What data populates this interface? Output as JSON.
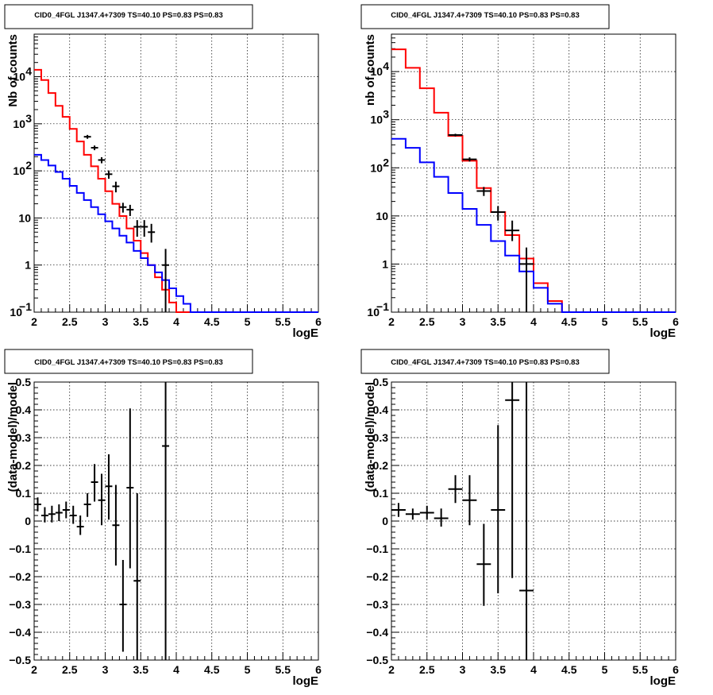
{
  "chart_data": [
    {
      "type": "line",
      "title": "CID0_4FGL J1347.4+7309 TS=40.10 PS=0.83 PS=0.83",
      "xlabel": "logE",
      "ylabel": "Nb of counts",
      "xlim": [
        2,
        6
      ],
      "ylim": [
        0.1,
        80000
      ],
      "yscale": "log",
      "grid": true,
      "x_ticks": [
        "2",
        "2.5",
        "3",
        "3.5",
        "4",
        "4.5",
        "5",
        "5.5",
        "6"
      ],
      "y_ticks": [
        {
          "v": 0.1,
          "label": "10",
          "sup": "−1"
        },
        {
          "v": 1,
          "label": "1"
        },
        {
          "v": 10,
          "label": "10"
        },
        {
          "v": 100,
          "label": "10",
          "sup": "2"
        },
        {
          "v": 1000,
          "label": "10",
          "sup": "3"
        },
        {
          "v": 10000,
          "label": "10",
          "sup": "4"
        }
      ],
      "bin_edges": [
        2.0,
        2.1,
        2.2,
        2.3,
        2.4,
        2.5,
        2.6,
        2.7,
        2.8,
        2.9,
        3.0,
        3.1,
        3.2,
        3.3,
        3.4,
        3.5,
        3.6,
        3.7,
        3.8,
        3.9,
        4.0,
        4.1,
        4.2,
        4.3,
        4.4,
        4.5,
        4.6,
        4.7,
        4.8,
        4.9,
        5.0,
        5.1,
        5.2,
        5.3,
        5.4,
        5.5,
        5.6,
        5.7,
        5.8,
        5.9,
        6.0
      ],
      "series": [
        {
          "color": "#ff0000",
          "values": [
            14000,
            8500,
            4500,
            2400,
            1400,
            780,
            420,
            220,
            125,
            68,
            37,
            20,
            11,
            6,
            3.3,
            1.8,
            1.0,
            0.55,
            0.3,
            0.16,
            0.1,
            0.1,
            0.1,
            0.1,
            0.1,
            0.1,
            0.1,
            0.1,
            0.1,
            0.1,
            0.1,
            0.1,
            0.1,
            0.1,
            0.1,
            0.1,
            0.1,
            0.1,
            0.1,
            0.1
          ]
        },
        {
          "color": "#0000ff",
          "values": [
            220,
            170,
            130,
            95,
            68,
            48,
            34,
            24,
            17,
            12,
            8.5,
            6,
            4.2,
            3,
            2,
            1.4,
            1.0,
            0.7,
            0.48,
            0.32,
            0.22,
            0.15,
            0.1,
            0.1,
            0.1,
            0.1,
            0.1,
            0.1,
            0.1,
            0.1,
            0.1,
            0.1,
            0.1,
            0.1,
            0.1,
            0.1,
            0.1,
            0.1,
            0.1,
            0.1
          ]
        }
      ],
      "points": [
        {
          "x": 2.75,
          "y": 530,
          "ylo": 480,
          "yhi": 580
        },
        {
          "x": 2.85,
          "y": 310,
          "ylo": 275,
          "yhi": 345
        },
        {
          "x": 2.95,
          "y": 170,
          "ylo": 145,
          "yhi": 195
        },
        {
          "x": 3.05,
          "y": 85,
          "ylo": 68,
          "yhi": 102
        },
        {
          "x": 3.15,
          "y": 47,
          "ylo": 35,
          "yhi": 59
        },
        {
          "x": 3.25,
          "y": 17,
          "ylo": 13,
          "yhi": 21
        },
        {
          "x": 3.35,
          "y": 15,
          "ylo": 11,
          "yhi": 19
        },
        {
          "x": 3.45,
          "y": 6.5,
          "ylo": 4,
          "yhi": 9
        },
        {
          "x": 3.55,
          "y": 6.5,
          "ylo": 4,
          "yhi": 9
        },
        {
          "x": 3.65,
          "y": 5,
          "ylo": 3,
          "yhi": 7.5
        },
        {
          "x": 3.85,
          "y": 1,
          "ylo": 0.1,
          "yhi": 2.2
        }
      ]
    },
    {
      "type": "line",
      "title": "CID0_4FGL J1347.4+7309 TS=40.10 PS=0.83 PS=0.83",
      "xlabel": "logE",
      "ylabel": "nb of counts",
      "xlim": [
        2,
        6
      ],
      "ylim": [
        0.1,
        60000
      ],
      "yscale": "log",
      "grid": true,
      "x_ticks": [
        "2",
        "2.5",
        "3",
        "3.5",
        "4",
        "4.5",
        "5",
        "5.5",
        "6"
      ],
      "y_ticks": [
        {
          "v": 0.1,
          "label": "10",
          "sup": "−1"
        },
        {
          "v": 1,
          "label": "1"
        },
        {
          "v": 10,
          "label": "10"
        },
        {
          "v": 100,
          "label": "10",
          "sup": "2"
        },
        {
          "v": 1000,
          "label": "10",
          "sup": "3"
        },
        {
          "v": 10000,
          "label": "10",
          "sup": "4"
        }
      ],
      "bin_edges": [
        2.0,
        2.2,
        2.4,
        2.6,
        2.8,
        3.0,
        3.2,
        3.4,
        3.6,
        3.8,
        4.0,
        4.2,
        4.4,
        4.6,
        4.8,
        5.0,
        5.2,
        5.4,
        5.6,
        5.8,
        6.0
      ],
      "series": [
        {
          "color": "#ff0000",
          "values": [
            29000,
            12000,
            4500,
            1400,
            460,
            140,
            38,
            12,
            4,
            1.3,
            0.4,
            0.17,
            0.1,
            0.1,
            0.1,
            0.1,
            0.1,
            0.1,
            0.1,
            0.1
          ]
        },
        {
          "color": "#0000ff",
          "values": [
            400,
            260,
            130,
            65,
            30,
            14,
            6.5,
            3,
            1.5,
            0.7,
            0.32,
            0.15,
            0.1,
            0.1,
            0.1,
            0.1,
            0.1,
            0.1,
            0.1,
            0.1
          ]
        }
      ],
      "points": [
        {
          "x": 2.9,
          "y": 480,
          "ylo": 450,
          "yhi": 510
        },
        {
          "x": 3.1,
          "y": 150,
          "ylo": 135,
          "yhi": 165
        },
        {
          "x": 3.3,
          "y": 33,
          "ylo": 26,
          "yhi": 40
        },
        {
          "x": 3.5,
          "y": 12,
          "ylo": 8,
          "yhi": 16
        },
        {
          "x": 3.7,
          "y": 5,
          "ylo": 3,
          "yhi": 8
        },
        {
          "x": 3.9,
          "y": 1,
          "ylo": 0.1,
          "yhi": 2.2
        }
      ]
    },
    {
      "type": "scatter",
      "title": "CID0_4FGL J1347.4+7309 TS=40.10 PS=0.83 PS=0.83",
      "xlabel": "logE",
      "ylabel": "(data-model)/model",
      "xlim": [
        2,
        6
      ],
      "ylim": [
        -0.5,
        0.5
      ],
      "grid": true,
      "x_ticks": [
        "2",
        "2.5",
        "3",
        "3.5",
        "4",
        "4.5",
        "5",
        "5.5",
        "6"
      ],
      "y_ticks": [
        {
          "v": -0.5,
          "label": "−0.5"
        },
        {
          "v": -0.4,
          "label": "−0.4"
        },
        {
          "v": -0.3,
          "label": "−0.3"
        },
        {
          "v": -0.2,
          "label": "−0.2"
        },
        {
          "v": -0.1,
          "label": "−0.1"
        },
        {
          "v": 0,
          "label": "0"
        },
        {
          "v": 0.1,
          "label": "0.1"
        },
        {
          "v": 0.2,
          "label": "0.2"
        },
        {
          "v": 0.3,
          "label": "0.3"
        },
        {
          "v": 0.4,
          "label": "0.4"
        },
        {
          "v": 0.5,
          "label": "0.5"
        }
      ],
      "points": [
        {
          "x": 2.05,
          "y": 0.06,
          "xlo": 2.0,
          "xhi": 2.1,
          "ylo": 0.035,
          "yhi": 0.085
        },
        {
          "x": 2.15,
          "y": 0.02,
          "xlo": 2.1,
          "xhi": 2.2,
          "ylo": -0.005,
          "yhi": 0.05
        },
        {
          "x": 2.25,
          "y": 0.025,
          "xlo": 2.2,
          "xhi": 2.3,
          "ylo": -0.005,
          "yhi": 0.055
        },
        {
          "x": 2.35,
          "y": 0.03,
          "xlo": 2.3,
          "xhi": 2.4,
          "ylo": 0.0,
          "yhi": 0.06
        },
        {
          "x": 2.45,
          "y": 0.04,
          "xlo": 2.4,
          "xhi": 2.5,
          "ylo": 0.01,
          "yhi": 0.07
        },
        {
          "x": 2.55,
          "y": 0.02,
          "xlo": 2.5,
          "xhi": 2.6,
          "ylo": -0.01,
          "yhi": 0.055
        },
        {
          "x": 2.65,
          "y": -0.02,
          "xlo": 2.6,
          "xhi": 2.7,
          "ylo": -0.05,
          "yhi": 0.02
        },
        {
          "x": 2.75,
          "y": 0.06,
          "xlo": 2.7,
          "xhi": 2.8,
          "ylo": 0.015,
          "yhi": 0.1
        },
        {
          "x": 2.85,
          "y": 0.14,
          "xlo": 2.8,
          "xhi": 2.9,
          "ylo": 0.07,
          "yhi": 0.205
        },
        {
          "x": 2.95,
          "y": 0.075,
          "xlo": 2.9,
          "xhi": 3.0,
          "ylo": -0.015,
          "yhi": 0.17
        },
        {
          "x": 3.05,
          "y": 0.125,
          "xlo": 3.0,
          "xhi": 3.1,
          "ylo": 0.005,
          "yhi": 0.24
        },
        {
          "x": 3.15,
          "y": -0.015,
          "xlo": 3.1,
          "xhi": 3.2,
          "ylo": -0.16,
          "yhi": 0.13
        },
        {
          "x": 3.25,
          "y": -0.3,
          "xlo": 3.2,
          "xhi": 3.3,
          "ylo": -0.47,
          "yhi": -0.14
        },
        {
          "x": 3.35,
          "y": 0.12,
          "xlo": 3.3,
          "xhi": 3.4,
          "ylo": -0.17,
          "yhi": 0.405
        },
        {
          "x": 3.45,
          "y": -0.215,
          "xlo": 3.4,
          "xhi": 3.5,
          "ylo": -0.5,
          "yhi": 0.1
        },
        {
          "x": 3.85,
          "y": 0.27,
          "xlo": 3.8,
          "xhi": 3.9,
          "ylo": -0.5,
          "yhi": 0.5
        }
      ]
    },
    {
      "type": "scatter",
      "title": "CID0_4FGL J1347.4+7309 TS=40.10 PS=0.83 PS=0.83",
      "xlabel": "logE",
      "ylabel": "(data-model)/model",
      "xlim": [
        2,
        6
      ],
      "ylim": [
        -0.5,
        0.5
      ],
      "grid": true,
      "x_ticks": [
        "2",
        "2.5",
        "3",
        "3.5",
        "4",
        "4.5",
        "5",
        "5.5",
        "6"
      ],
      "y_ticks": [
        {
          "v": -0.5,
          "label": "−0.5"
        },
        {
          "v": -0.4,
          "label": "−0.4"
        },
        {
          "v": -0.3,
          "label": "−0.3"
        },
        {
          "v": -0.2,
          "label": "−0.2"
        },
        {
          "v": -0.1,
          "label": "−0.1"
        },
        {
          "v": 0,
          "label": "0"
        },
        {
          "v": 0.1,
          "label": "0.1"
        },
        {
          "v": 0.2,
          "label": "0.2"
        },
        {
          "v": 0.3,
          "label": "0.3"
        },
        {
          "v": 0.4,
          "label": "0.4"
        },
        {
          "v": 0.5,
          "label": "0.5"
        }
      ],
      "points": [
        {
          "x": 2.1,
          "y": 0.04,
          "xlo": 2.0,
          "xhi": 2.2,
          "ylo": 0.015,
          "yhi": 0.065
        },
        {
          "x": 2.3,
          "y": 0.025,
          "xlo": 2.2,
          "xhi": 2.4,
          "ylo": 0.005,
          "yhi": 0.045
        },
        {
          "x": 2.5,
          "y": 0.03,
          "xlo": 2.4,
          "xhi": 2.6,
          "ylo": 0.005,
          "yhi": 0.055
        },
        {
          "x": 2.7,
          "y": 0.01,
          "xlo": 2.6,
          "xhi": 2.8,
          "ylo": -0.02,
          "yhi": 0.045
        },
        {
          "x": 2.9,
          "y": 0.115,
          "xlo": 2.8,
          "xhi": 3.0,
          "ylo": 0.065,
          "yhi": 0.165
        },
        {
          "x": 3.1,
          "y": 0.075,
          "xlo": 3.0,
          "xhi": 3.2,
          "ylo": -0.015,
          "yhi": 0.165
        },
        {
          "x": 3.3,
          "y": -0.155,
          "xlo": 3.2,
          "xhi": 3.4,
          "ylo": -0.305,
          "yhi": -0.01
        },
        {
          "x": 3.5,
          "y": 0.04,
          "xlo": 3.4,
          "xhi": 3.6,
          "ylo": -0.26,
          "yhi": 0.345
        },
        {
          "x": 3.7,
          "y": 0.435,
          "xlo": 3.6,
          "xhi": 3.8,
          "ylo": -0.205,
          "yhi": 0.5
        },
        {
          "x": 3.9,
          "y": -0.25,
          "xlo": 3.8,
          "xhi": 4.0,
          "ylo": -0.5,
          "yhi": 0.5
        }
      ]
    }
  ]
}
